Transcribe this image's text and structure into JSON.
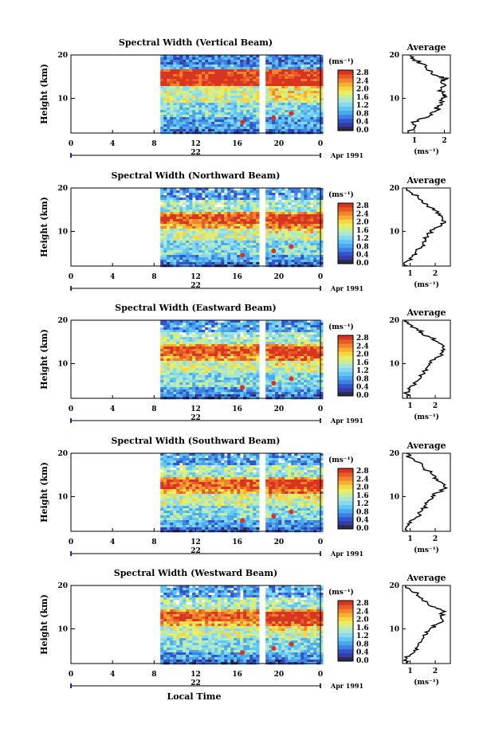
{
  "chart_data": {
    "type": "heatmap",
    "figure_xlabel": "Local Time",
    "x_ticks": [
      "0",
      "4",
      "8",
      "12",
      "16",
      "20",
      "0"
    ],
    "date_label": "Apr 1991",
    "y_ticks": [
      "20",
      "10"
    ],
    "ylabel": "Height (km)",
    "colorbar": {
      "unit": "(ms⁻¹)",
      "ticks": [
        "2.8",
        "2.4",
        "2.0",
        "1.6",
        "1.2",
        "0.8",
        "0.4",
        "0.0"
      ],
      "colors": [
        "#2b2b4a",
        "#3a3aa6",
        "#3355cc",
        "#3f80e0",
        "#49a8ef",
        "#62c6f3",
        "#86d9ee",
        "#a8e6d6",
        "#c9ee9a",
        "#e9ef62",
        "#f8d640",
        "#f6ae34",
        "#f0852c",
        "#e85a26",
        "#d83520"
      ]
    },
    "panels": [
      {
        "title": "Spectral Width (Vertical Beam)",
        "day": "22",
        "avg_title": "Average",
        "avg_xticks": [
          "1",
          "2"
        ],
        "avg_xlabel": "(ms⁻¹)",
        "avg_xlim": [
          0.6,
          2.2
        ],
        "avg_profile": [
          [
            0.8,
            2
          ],
          [
            1.0,
            3
          ],
          [
            0.95,
            4
          ],
          [
            1.1,
            5
          ],
          [
            1.5,
            6
          ],
          [
            1.7,
            7
          ],
          [
            1.8,
            8
          ],
          [
            1.85,
            9
          ],
          [
            1.9,
            10
          ],
          [
            2.0,
            10.5
          ],
          [
            1.95,
            11
          ],
          [
            1.9,
            12
          ],
          [
            2.05,
            13
          ],
          [
            1.9,
            14
          ],
          [
            2.1,
            14.5
          ],
          [
            1.8,
            15
          ],
          [
            1.6,
            16
          ],
          [
            1.4,
            17
          ],
          [
            1.25,
            18
          ],
          [
            1.0,
            19
          ],
          [
            0.85,
            20
          ]
        ],
        "pattern": "vertical"
      },
      {
        "title": "Spectral Width (Northward Beam)",
        "day": "22",
        "avg_title": "Average",
        "avg_xticks": [
          "1",
          "2"
        ],
        "avg_xlabel": "(ms⁻¹)",
        "avg_xlim": [
          0.7,
          2.6
        ],
        "avg_profile": [
          [
            0.9,
            2
          ],
          [
            0.85,
            3
          ],
          [
            1.05,
            4
          ],
          [
            1.2,
            5
          ],
          [
            1.35,
            6
          ],
          [
            1.5,
            7
          ],
          [
            1.6,
            8
          ],
          [
            1.7,
            9
          ],
          [
            1.8,
            10
          ],
          [
            2.1,
            11
          ],
          [
            2.4,
            12
          ],
          [
            2.3,
            13
          ],
          [
            2.2,
            14
          ],
          [
            1.9,
            15
          ],
          [
            1.7,
            16
          ],
          [
            1.5,
            17
          ],
          [
            1.3,
            18
          ],
          [
            1.0,
            19
          ],
          [
            0.85,
            20
          ]
        ],
        "pattern": "oblique"
      },
      {
        "title": "Spectral Width (Eastward Beam)",
        "day": "22",
        "avg_title": "Average",
        "avg_xticks": [
          "1",
          "2"
        ],
        "avg_xlabel": "(ms⁻¹)",
        "avg_xlim": [
          0.7,
          2.6
        ],
        "avg_profile": [
          [
            0.9,
            2
          ],
          [
            0.85,
            3
          ],
          [
            1.0,
            4
          ],
          [
            1.15,
            5
          ],
          [
            1.3,
            6
          ],
          [
            1.45,
            7
          ],
          [
            1.55,
            8
          ],
          [
            1.65,
            9
          ],
          [
            1.75,
            10
          ],
          [
            2.0,
            11
          ],
          [
            2.3,
            12
          ],
          [
            2.25,
            13
          ],
          [
            2.35,
            14
          ],
          [
            2.1,
            15
          ],
          [
            1.8,
            16
          ],
          [
            1.5,
            17
          ],
          [
            1.3,
            18
          ],
          [
            1.0,
            19
          ],
          [
            0.85,
            20
          ]
        ],
        "pattern": "oblique"
      },
      {
        "title": "Spectral Width (Southward Beam)",
        "day": "22",
        "avg_title": "Average",
        "avg_xticks": [
          "1",
          "2"
        ],
        "avg_xlabel": "(ms⁻¹)",
        "avg_xlim": [
          0.7,
          2.6
        ],
        "avg_profile": [
          [
            0.9,
            2
          ],
          [
            0.85,
            3
          ],
          [
            1.05,
            4
          ],
          [
            1.2,
            5
          ],
          [
            1.35,
            6
          ],
          [
            1.5,
            7
          ],
          [
            1.6,
            8
          ],
          [
            1.7,
            9
          ],
          [
            1.85,
            10
          ],
          [
            2.15,
            11
          ],
          [
            2.45,
            12
          ],
          [
            2.3,
            13
          ],
          [
            2.1,
            14
          ],
          [
            1.9,
            15
          ],
          [
            1.7,
            16
          ],
          [
            1.5,
            17
          ],
          [
            1.3,
            18
          ],
          [
            1.0,
            19
          ],
          [
            0.85,
            20
          ]
        ],
        "pattern": "oblique"
      },
      {
        "title": "Spectral Width (Westward Beam)",
        "day": "22",
        "avg_title": "Average",
        "avg_xticks": [
          "1",
          "2"
        ],
        "avg_xlabel": "(ms⁻¹)",
        "avg_xlim": [
          0.7,
          2.6
        ],
        "avg_profile": [
          [
            0.9,
            2
          ],
          [
            0.85,
            3
          ],
          [
            1.0,
            4
          ],
          [
            1.15,
            5
          ],
          [
            1.3,
            6
          ],
          [
            1.45,
            7
          ],
          [
            1.55,
            8
          ],
          [
            1.7,
            9
          ],
          [
            1.8,
            10
          ],
          [
            2.05,
            11
          ],
          [
            2.3,
            12
          ],
          [
            2.2,
            13
          ],
          [
            2.4,
            14
          ],
          [
            2.0,
            15
          ],
          [
            1.7,
            16
          ],
          [
            1.5,
            17
          ],
          [
            1.3,
            18
          ],
          [
            1.0,
            19
          ],
          [
            0.85,
            20
          ]
        ],
        "pattern": "oblique"
      }
    ],
    "x_range_hours": [
      0,
      24
    ],
    "data_start_hour": 8.6,
    "gap_hours": [
      18.2,
      18.6
    ],
    "y_range_km": [
      2,
      20
    ]
  }
}
